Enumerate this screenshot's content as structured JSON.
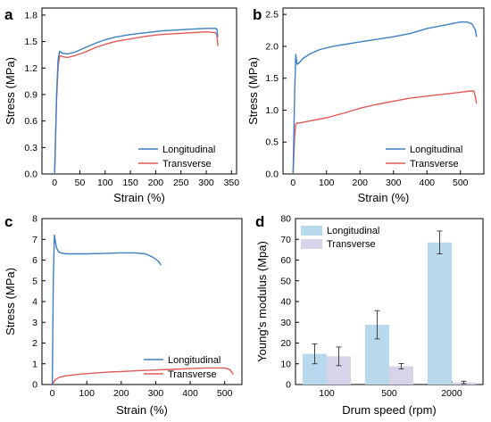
{
  "chart_data": [
    {
      "panel": "a",
      "type": "line",
      "xlabel": "Strain (%)",
      "ylabel": "Stress (MPa)",
      "xlim": [
        -25,
        360
      ],
      "ylim": [
        0,
        1.88
      ],
      "xticks": [
        0,
        50,
        100,
        150,
        200,
        250,
        300,
        350
      ],
      "yticks": [
        0.0,
        0.3,
        0.6,
        0.9,
        1.2,
        1.5,
        1.8
      ],
      "ytick_labels": [
        "0.0",
        "0.3",
        "0.6",
        "0.9",
        "1.2",
        "1.5",
        "1.8"
      ],
      "legend_position": "bottom-right",
      "series": [
        {
          "name": "Longitudinal",
          "color": "#3f7fbf",
          "x": [
            0,
            4,
            7,
            10,
            15,
            25,
            40,
            60,
            80,
            100,
            120,
            150,
            180,
            210,
            240,
            270,
            300,
            318,
            321,
            323
          ],
          "y": [
            0,
            0.9,
            1.3,
            1.39,
            1.37,
            1.36,
            1.38,
            1.43,
            1.48,
            1.52,
            1.55,
            1.58,
            1.6,
            1.62,
            1.63,
            1.64,
            1.65,
            1.65,
            1.64,
            1.55
          ]
        },
        {
          "name": "Transverse",
          "color": "#e05a5a",
          "x": [
            0,
            4,
            7,
            10,
            15,
            25,
            40,
            60,
            80,
            100,
            120,
            150,
            180,
            210,
            240,
            270,
            300,
            318,
            321,
            323
          ],
          "y": [
            0,
            0.85,
            1.22,
            1.34,
            1.33,
            1.32,
            1.34,
            1.38,
            1.43,
            1.47,
            1.5,
            1.53,
            1.56,
            1.58,
            1.59,
            1.6,
            1.61,
            1.6,
            1.58,
            1.45
          ]
        }
      ]
    },
    {
      "panel": "b",
      "type": "line",
      "xlabel": "Strain (%)",
      "ylabel": "Stress (MPa)",
      "xlim": [
        -30,
        570
      ],
      "ylim": [
        0,
        2.6
      ],
      "xticks": [
        0,
        100,
        200,
        300,
        400,
        500
      ],
      "yticks": [
        0.0,
        0.5,
        1.0,
        1.5,
        2.0,
        2.5
      ],
      "ytick_labels": [
        "0.0",
        "0.5",
        "1.0",
        "1.5",
        "2.0",
        "2.5"
      ],
      "legend_position": "bottom-right",
      "series": [
        {
          "name": "Longitudinal",
          "color": "#3f7fbf",
          "x": [
            0,
            5,
            8,
            12,
            18,
            30,
            50,
            80,
            120,
            200,
            300,
            350,
            400,
            450,
            500,
            520,
            535,
            545,
            548
          ],
          "y": [
            0,
            1.3,
            1.87,
            1.72,
            1.74,
            1.81,
            1.88,
            1.95,
            2.0,
            2.07,
            2.15,
            2.2,
            2.28,
            2.33,
            2.38,
            2.38,
            2.35,
            2.25,
            2.15
          ]
        },
        {
          "name": "Transverse",
          "color": "#e05a5a",
          "x": [
            0,
            5,
            8,
            12,
            20,
            50,
            100,
            150,
            200,
            250,
            300,
            350,
            400,
            450,
            500,
            530,
            540,
            545,
            548
          ],
          "y": [
            0,
            0.6,
            0.78,
            0.8,
            0.8,
            0.83,
            0.88,
            0.95,
            1.03,
            1.09,
            1.14,
            1.19,
            1.22,
            1.25,
            1.28,
            1.3,
            1.3,
            1.2,
            1.1
          ]
        }
      ]
    },
    {
      "panel": "c",
      "type": "line",
      "xlabel": "Strain (%)",
      "ylabel": "Stress (MPa)",
      "xlim": [
        -30,
        550
      ],
      "ylim": [
        0,
        8
      ],
      "xticks": [
        0,
        100,
        200,
        300,
        400,
        500
      ],
      "yticks": [
        0,
        1,
        2,
        3,
        4,
        5,
        6,
        7,
        8
      ],
      "ytick_labels": [
        "0",
        "1",
        "2",
        "3",
        "4",
        "5",
        "6",
        "7",
        "8"
      ],
      "legend_position": "bottom-right",
      "series": [
        {
          "name": "Longitudinal",
          "color": "#3f7fbf",
          "x": [
            0,
            3,
            6,
            9,
            12,
            18,
            25,
            40,
            60,
            100,
            150,
            200,
            240,
            270,
            290,
            300,
            310,
            315
          ],
          "y": [
            0,
            5.0,
            7.2,
            6.9,
            6.6,
            6.4,
            6.35,
            6.3,
            6.3,
            6.3,
            6.32,
            6.35,
            6.35,
            6.3,
            6.15,
            6.05,
            5.9,
            5.75
          ]
        },
        {
          "name": "Transverse",
          "color": "#e05a5a",
          "x": [
            0,
            5,
            10,
            20,
            40,
            80,
            120,
            160,
            200,
            250,
            300,
            350,
            400,
            450,
            480,
            500,
            515,
            525
          ],
          "y": [
            0,
            0.15,
            0.25,
            0.35,
            0.42,
            0.5,
            0.55,
            0.6,
            0.63,
            0.67,
            0.7,
            0.73,
            0.77,
            0.8,
            0.8,
            0.8,
            0.72,
            0.5
          ]
        }
      ]
    },
    {
      "panel": "d",
      "type": "bar",
      "xlabel": "Drum speed (rpm)",
      "ylabel": "Young's modulus (Mpa)",
      "categories": [
        "100",
        "500",
        "2000"
      ],
      "ylim": [
        0,
        80
      ],
      "yticks": [
        0,
        10,
        20,
        30,
        40,
        50,
        60,
        70,
        80
      ],
      "ytick_labels": [
        "0",
        "10",
        "20",
        "30",
        "40",
        "50",
        "60",
        "70",
        "80"
      ],
      "legend_position": "top-left",
      "series": [
        {
          "name": "Longitudinal",
          "color": "#b8d8ec",
          "values": [
            14.8,
            28.8,
            68.5
          ],
          "errors": [
            4.8,
            6.8,
            5.5
          ]
        },
        {
          "name": "Transverse",
          "color": "#d7d3e8",
          "values": [
            13.6,
            8.8,
            1.0
          ],
          "errors": [
            4.5,
            1.3,
            0.6
          ]
        }
      ]
    }
  ]
}
